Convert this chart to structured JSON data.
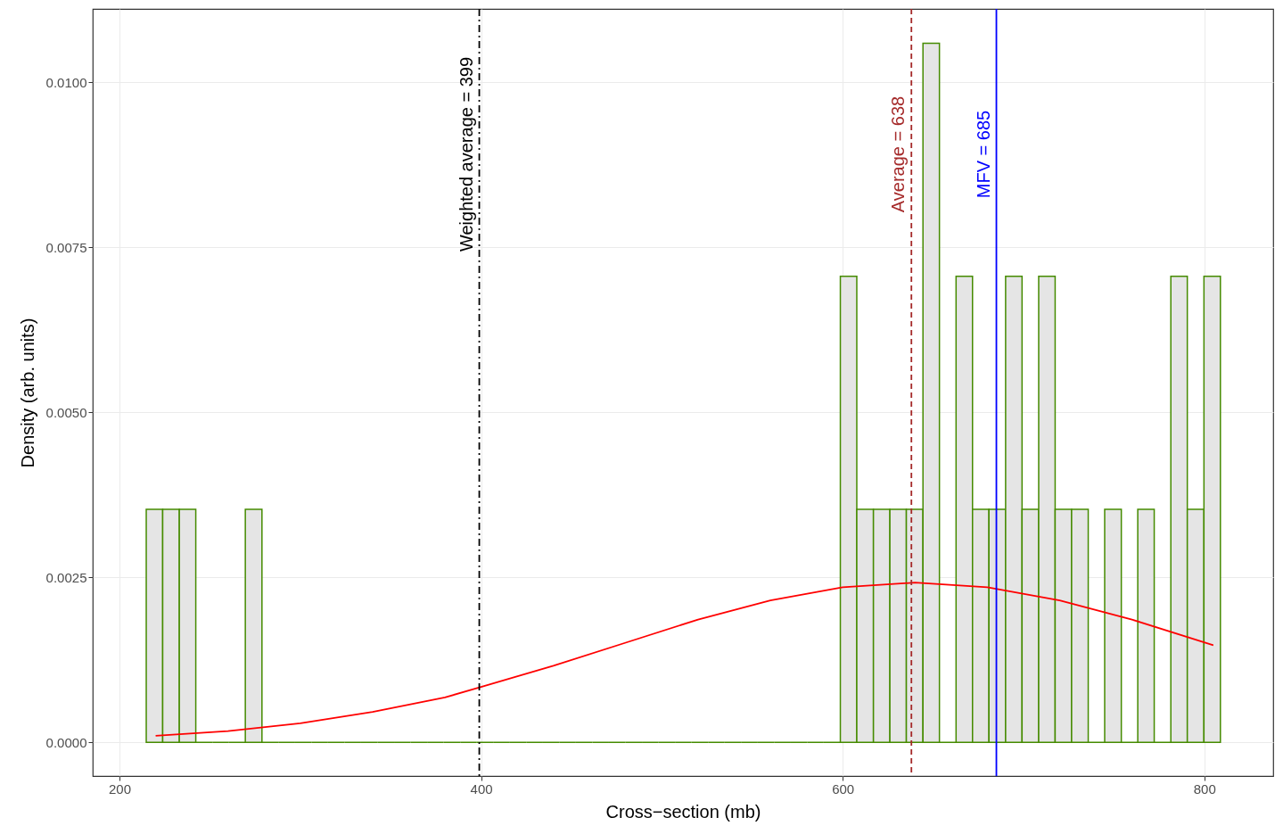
{
  "chart_data": {
    "type": "histogram",
    "xlabel": "Cross−section (mb)",
    "ylabel": "Density (arb. units)",
    "bins": [
      214.8,
      223.9,
      233.1,
      242.2,
      251.4,
      260.5,
      269.6,
      278.8,
      287.9,
      297.1,
      306.2,
      315.3,
      324.5,
      333.6,
      342.8,
      351.9,
      361.0,
      370.2,
      379.3,
      388.5,
      397.6,
      406.7,
      415.9,
      425.0,
      434.2,
      443.3,
      452.4,
      461.6,
      470.7,
      479.9,
      489.0,
      498.1,
      507.3,
      516.4,
      525.6,
      534.7,
      543.8,
      553.0,
      562.1,
      571.3,
      580.4,
      589.5,
      598.7,
      607.8,
      617.0,
      626.1,
      635.2,
      644.4,
      653.5,
      662.7,
      671.8,
      680.9,
      690.1,
      699.2,
      708.4,
      717.5,
      726.6,
      735.8,
      744.9,
      754.1,
      763.2,
      772.3,
      781.5,
      790.6,
      799.8,
      808.9
    ],
    "series": [
      {
        "color": "#458b00",
        "values": [
          0.00353,
          0.00353,
          0.00353,
          0,
          0,
          0,
          0.00353,
          0,
          0,
          0,
          0,
          0,
          0,
          0,
          0,
          0,
          0,
          0,
          0,
          0,
          0,
          0,
          0,
          0,
          0,
          0,
          0,
          0,
          0,
          0,
          0,
          0,
          0,
          0,
          0,
          0,
          0,
          0,
          0,
          0,
          0,
          0,
          0.00706,
          0.00353,
          0.00353,
          0.00353,
          0.00353,
          0.01059,
          0,
          0.00706,
          0.00353,
          0.00353,
          0.00706,
          0.00353,
          0.00706,
          0.00353,
          0.00353,
          0,
          0.00353,
          0,
          0.00353,
          0,
          0.00706,
          0.00353,
          0.00706
        ]
      },
      {
        "type": "line",
        "color": "#ff0000",
        "x": [
          220,
          260,
          300,
          340,
          380,
          400,
          440,
          480,
          520,
          560,
          600,
          640,
          680,
          720,
          760,
          805
        ],
        "values": [
          0.0001,
          0.00017,
          0.00029,
          0.00046,
          0.00068,
          0.00084,
          0.00116,
          0.00151,
          0.00186,
          0.00215,
          0.00235,
          0.00242,
          0.00235,
          0.00215,
          0.00186,
          0.00147
        ]
      }
    ],
    "xlim": [
      185.2,
      838.1
    ],
    "xticks": [
      200,
      400,
      600,
      800
    ],
    "ylim": [
      -0.00051,
      0.01111
    ],
    "yticks": [
      {
        "value": 0,
        "label": "0.0000"
      },
      0.0025,
      {
        "value": 0.005,
        "label": "0.0050"
      },
      0.0075,
      {
        "value": 0.01,
        "label": "0.0100"
      }
    ],
    "grid": true,
    "ref_lines": [
      {
        "axis": "x",
        "value": 399,
        "label": "Weighted average = 399",
        "color": "#000000",
        "line_style": "dashdot"
      },
      {
        "axis": "x",
        "value": 638,
        "label": "Average = 638",
        "color": "#a52a2a",
        "line_style": "dashed"
      },
      {
        "axis": "x",
        "value": 685,
        "label": "MFV = 685",
        "color": "#0000ff",
        "line_style": "solid"
      }
    ]
  }
}
